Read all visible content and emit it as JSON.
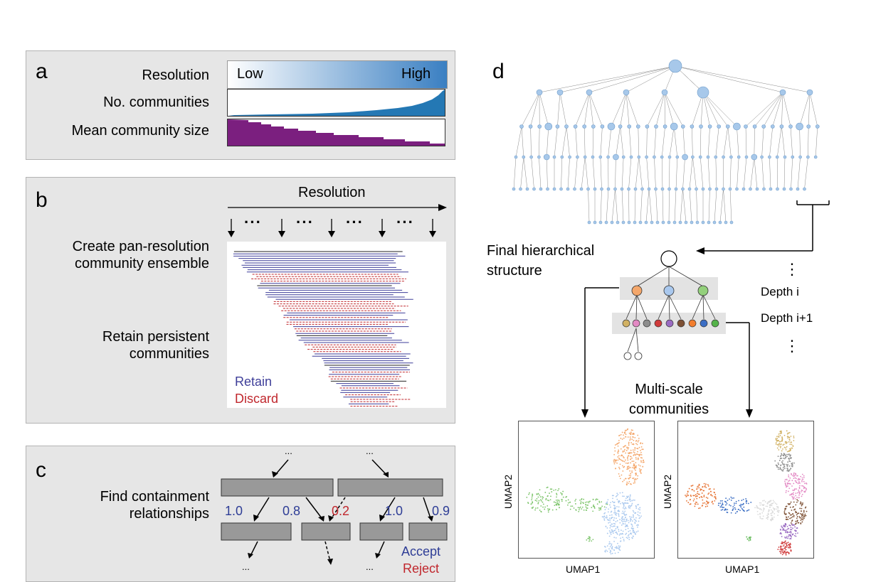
{
  "panel_a": {
    "letter": "a",
    "row_resolution": "Resolution",
    "row_communities": "No. communities",
    "row_size": "Mean community size",
    "gradient_low": "Low",
    "gradient_high": "High",
    "colors": {
      "gradient_start": "#ffffff",
      "gradient_end": "#3a7fc2",
      "communities_fill": "#2478b4",
      "size_fill": "#7b1f7f"
    }
  },
  "panel_b": {
    "letter": "b",
    "axis_title": "Resolution",
    "ellipsis": "···",
    "step1_line1": "Create pan-resolution",
    "step1_line2": "community ensemble",
    "step2_line1": "Retain persistent",
    "step2_line2": "communities",
    "legend_retain": "Retain",
    "legend_discard": "Discard",
    "colors": {
      "retain": "#3e3e99",
      "discard": "#c0272d"
    }
  },
  "panel_c": {
    "letter": "c",
    "label_line1": "Find containment",
    "label_line2": "relationships",
    "dots": "...",
    "weights": [
      "1.0",
      "0.8",
      "0.2",
      "1.0",
      "0.9"
    ],
    "legend_accept": "Accept",
    "legend_reject": "Reject",
    "colors": {
      "accept": "#2e3d96",
      "reject": "#c0272d",
      "box": "#999999"
    }
  },
  "panel_d": {
    "letter": "d",
    "final_line1": "Final hierarchical",
    "final_line2": "structure",
    "depth_i": "Depth i",
    "depth_i1": "Depth i+1",
    "vdots": "⋮",
    "multi_line1": "Multi-scale",
    "multi_line2": "communities",
    "umap_x": "UMAP1",
    "umap_y": "UMAP2",
    "colors": {
      "node": "#a7c8ea",
      "node_edge": "#6f9cc9"
    }
  }
}
